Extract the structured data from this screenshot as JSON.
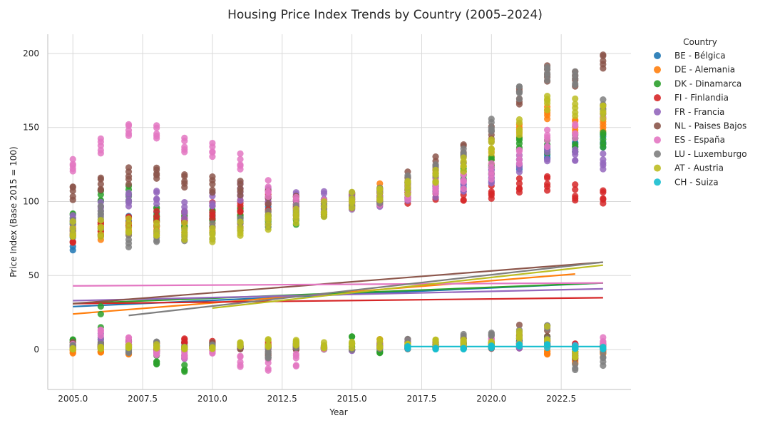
{
  "chart_data": {
    "type": "scatter",
    "title": "Housing Price Index Trends by Country (2005–2024)",
    "xlabel": "Year",
    "ylabel": "Price Index (Base 2015 = 100)",
    "xlim": [
      2004.1,
      2025.0
    ],
    "ylim": [
      -27,
      213
    ],
    "xticks": [
      2005.0,
      2007.5,
      2010.0,
      2012.5,
      2015.0,
      2017.5,
      2020.0,
      2022.5
    ],
    "xtick_labels": [
      "2005.0",
      "2007.5",
      "2010.0",
      "2012.5",
      "2015.0",
      "2017.5",
      "2020.0",
      "2022.5"
    ],
    "yticks": [
      0,
      50,
      100,
      150,
      200
    ],
    "ytick_labels": [
      "0",
      "50",
      "100",
      "150",
      "200"
    ],
    "grid": true,
    "legend": {
      "title": "Country",
      "placement": "outside-right"
    },
    "years": [
      2005,
      2006,
      2007,
      2008,
      2009,
      2010,
      2011,
      2012,
      2013,
      2014,
      2015,
      2016,
      2017,
      2018,
      2019,
      2020,
      2021,
      2022,
      2023,
      2024
    ],
    "series": [
      {
        "name": "BE - Bélgica",
        "color": "#1f77b4",
        "index": [
          72,
          80,
          84,
          88,
          85,
          88,
          90,
          91,
          94,
          96,
          100,
          103,
          106,
          110,
          114,
          118,
          125,
          133,
          138,
          140
        ],
        "noise": [
          3,
          2,
          6,
          4,
          5,
          4,
          3,
          2,
          3,
          1,
          0,
          2,
          3,
          3,
          4,
          6,
          6,
          8,
          3,
          3
        ],
        "trend": [
          2005,
          29,
          2024,
          45
        ]
      },
      {
        "name": "DE - Alemania",
        "color": "#ff7f0e",
        "index": [
          78,
          79,
          81,
          83,
          84,
          84,
          86,
          89,
          92,
          95,
          100,
          106,
          110,
          116,
          122,
          130,
          147,
          160,
          150,
          152
        ],
        "noise": [
          -3,
          -2,
          -4,
          0,
          2,
          4,
          3,
          4,
          2,
          1,
          0,
          8,
          5,
          2,
          3,
          8,
          10,
          -5,
          -10,
          -3
        ],
        "trend": [
          2005,
          24,
          2023,
          51
        ]
      },
      {
        "name": "DK - Dinamarca",
        "color": "#2ca02c",
        "index": [
          88,
          104,
          105,
          91,
          87,
          90,
          92,
          87,
          89,
          93,
          100,
          104,
          107,
          111,
          118,
          124,
          139,
          137,
          139,
          142
        ],
        "noise": [
          7,
          30,
          2,
          -10,
          -15,
          6,
          5,
          4,
          6,
          2,
          9,
          -3,
          1,
          2,
          5,
          4,
          8,
          10,
          1,
          3
        ],
        "trend": [
          2005,
          31,
          2024,
          45
        ]
      },
      {
        "name": "FI - Finlandia",
        "color": "#d62728",
        "index": [
          76,
          82,
          86,
          87,
          89,
          93,
          96,
          99,
          98,
          97,
          100,
          102,
          103,
          104,
          104,
          105,
          110,
          112,
          105,
          102
        ],
        "noise": [
          2,
          4,
          6,
          5,
          8,
          6,
          4,
          5,
          3,
          2,
          0,
          3,
          2,
          4,
          2,
          3,
          5,
          6,
          4,
          2
        ],
        "trend": [
          2005,
          31,
          2024,
          35
        ]
      },
      {
        "name": "FR - Francia",
        "color": "#9467bd",
        "index": [
          86,
          95,
          101,
          102,
          94,
          100,
          106,
          104,
          102,
          101,
          100,
          101,
          105,
          107,
          110,
          116,
          124,
          132,
          131,
          126
        ],
        "noise": [
          1,
          11,
          4,
          -2,
          -7,
          2,
          1,
          1,
          1,
          3,
          -1,
          5,
          2,
          5,
          2,
          3,
          4,
          8,
          3,
          1
        ],
        "trend": [
          2005,
          33,
          2024,
          41
        ]
      },
      {
        "name": "NL - Paises Bajos",
        "color": "#8c564b",
        "index": [
          106,
          111,
          117,
          119,
          114,
          111,
          109,
          103,
          100,
          96,
          100,
          104,
          114,
          124,
          134,
          145,
          170,
          186,
          183,
          195
        ],
        "noise": [
          5,
          3,
          8,
          -3,
          1,
          5,
          2,
          -7,
          0,
          2,
          0,
          2,
          9,
          8,
          10,
          6,
          18,
          19,
          -8,
          5
        ],
        "trend": [
          2005,
          31,
          2024,
          59
        ]
      },
      {
        "name": "ES - España",
        "color": "#e377c2",
        "index": [
          123,
          137,
          148,
          146,
          137,
          134,
          126,
          108,
          97,
          97,
          100,
          102,
          106,
          110,
          114,
          120,
          130,
          142,
          147,
          160
        ],
        "noise": [
          4,
          14,
          12,
          -4,
          -7,
          -3,
          -12,
          -15,
          -12,
          2,
          0,
          3,
          8,
          5,
          6,
          8,
          9,
          5,
          4,
          11
        ],
        "trend": [
          2005,
          43,
          2024,
          45
        ]
      },
      {
        "name": "LU - Luxemburgo",
        "color": "#7f7f7f",
        "index": [
          83,
          91,
          74,
          76,
          76,
          80,
          84,
          88,
          92,
          95,
          100,
          103,
          113,
          120,
          131,
          150,
          174,
          187,
          182,
          163
        ],
        "noise": [
          3,
          5,
          -3,
          6,
          2,
          4,
          4,
          -6,
          4,
          3,
          0,
          2,
          8,
          6,
          11,
          16,
          14,
          18,
          -14,
          -11
        ],
        "trend": [
          2007,
          23,
          2024,
          59
        ]
      },
      {
        "name": "AT - Austria",
        "color": "#bcbd22",
        "index": [
          80,
          81,
          82,
          80,
          79,
          77,
          80,
          86,
          90,
          94,
          100,
          105,
          110,
          117,
          125,
          136,
          150,
          167,
          163,
          161
        ],
        "noise": [
          1,
          2,
          3,
          4,
          2,
          3,
          5,
          8,
          8,
          5,
          6,
          7,
          5,
          8,
          8,
          10,
          13,
          16,
          -6,
          2
        ],
        "trend": [
          2010,
          28,
          2024,
          57
        ]
      },
      {
        "name": "CH - Suiza",
        "color": "#17becf",
        "index": [],
        "noise": [
          null,
          null,
          null,
          null,
          null,
          null,
          null,
          null,
          null,
          null,
          null,
          null,
          3,
          1,
          1,
          4,
          5,
          4,
          3,
          2
        ],
        "trend": [
          2017,
          2,
          2024,
          2
        ]
      }
    ]
  }
}
